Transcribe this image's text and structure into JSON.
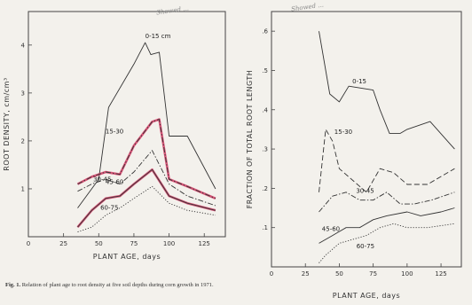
{
  "caption": {
    "figure": "Fig. 1.",
    "text": "Relation of plant age to root density at five soil depths during corn growth in 1971."
  },
  "stamps": {
    "left": "Showed ...",
    "right": "Showed ..."
  },
  "colors": {
    "frame": "#444444",
    "ink": "#333333",
    "highlight": "#d23a64"
  },
  "chart_data": [
    {
      "type": "line",
      "title": "",
      "xlabel": "PLANT AGE, days",
      "ylabel": "ROOT DENSITY, cm/cm³",
      "xlim": [
        0,
        140
      ],
      "ylim": [
        0,
        4.7
      ],
      "xticks": [
        0,
        25,
        50,
        75,
        100,
        125
      ],
      "yticks": [
        1,
        2,
        3,
        4
      ],
      "series": [
        {
          "name": "0-15 cm",
          "style": "solid",
          "points": [
            [
              35,
              0.6
            ],
            [
              50,
              1.2
            ],
            [
              57,
              2.7
            ],
            [
              75,
              3.6
            ],
            [
              83,
              4.05
            ],
            [
              87,
              3.8
            ],
            [
              93,
              3.85
            ],
            [
              100,
              2.1
            ],
            [
              113,
              2.1
            ],
            [
              133,
              1.0
            ]
          ]
        },
        {
          "name": "15-30",
          "style": "dashdot",
          "highlight": true,
          "points": [
            [
              35,
              1.1
            ],
            [
              45,
              1.25
            ],
            [
              55,
              1.35
            ],
            [
              65,
              1.3
            ],
            [
              75,
              1.9
            ],
            [
              88,
              2.4
            ],
            [
              93,
              2.45
            ],
            [
              100,
              1.2
            ],
            [
              113,
              1.05
            ],
            [
              133,
              0.8
            ]
          ]
        },
        {
          "name": "30-45",
          "style": "dashdot",
          "points": [
            [
              35,
              0.95
            ],
            [
              45,
              1.1
            ],
            [
              55,
              1.2
            ],
            [
              65,
              1.1
            ],
            [
              75,
              1.35
            ],
            [
              88,
              1.8
            ],
            [
              100,
              1.1
            ],
            [
              113,
              0.85
            ],
            [
              133,
              0.65
            ]
          ]
        },
        {
          "name": "45-60",
          "style": "solid",
          "highlight": true,
          "points": [
            [
              35,
              0.2
            ],
            [
              45,
              0.55
            ],
            [
              55,
              0.8
            ],
            [
              65,
              0.85
            ],
            [
              75,
              1.1
            ],
            [
              88,
              1.4
            ],
            [
              100,
              0.85
            ],
            [
              113,
              0.7
            ],
            [
              133,
              0.55
            ]
          ]
        },
        {
          "name": "60-75",
          "style": "dotted",
          "points": [
            [
              35,
              0.1
            ],
            [
              45,
              0.2
            ],
            [
              55,
              0.45
            ],
            [
              65,
              0.6
            ],
            [
              75,
              0.8
            ],
            [
              88,
              1.05
            ],
            [
              100,
              0.7
            ],
            [
              113,
              0.55
            ],
            [
              133,
              0.45
            ]
          ]
        }
      ]
    },
    {
      "type": "line",
      "title": "",
      "xlabel": "PLANT AGE, days",
      "ylabel": "FRACTION OF TOTAL ROOT LENGTH",
      "xlim": [
        0,
        140
      ],
      "ylim": [
        0,
        0.65
      ],
      "xticks": [
        0,
        25,
        50,
        75,
        100,
        125
      ],
      "yticks": [
        0.1,
        0.2,
        0.3,
        0.4,
        0.5,
        0.6
      ],
      "ytick_labels": [
        ".1",
        ".2",
        ".3",
        ".4",
        ".5",
        ".6"
      ],
      "series": [
        {
          "name": "0-15",
          "style": "solid",
          "points": [
            [
              35,
              0.6
            ],
            [
              43,
              0.44
            ],
            [
              50,
              0.42
            ],
            [
              57,
              0.46
            ],
            [
              75,
              0.45
            ],
            [
              80,
              0.4
            ],
            [
              87,
              0.34
            ],
            [
              95,
              0.34
            ],
            [
              100,
              0.35
            ],
            [
              117,
              0.37
            ],
            [
              135,
              0.3
            ]
          ]
        },
        {
          "name": "15-30",
          "style": "dashed",
          "points": [
            [
              35,
              0.19
            ],
            [
              40,
              0.35
            ],
            [
              45,
              0.32
            ],
            [
              50,
              0.25
            ],
            [
              60,
              0.22
            ],
            [
              70,
              0.19
            ],
            [
              80,
              0.25
            ],
            [
              90,
              0.24
            ],
            [
              100,
              0.21
            ],
            [
              115,
              0.21
            ],
            [
              135,
              0.25
            ]
          ]
        },
        {
          "name": "30-45",
          "style": "dashdot",
          "points": [
            [
              35,
              0.14
            ],
            [
              45,
              0.18
            ],
            [
              55,
              0.19
            ],
            [
              65,
              0.17
            ],
            [
              75,
              0.17
            ],
            [
              85,
              0.19
            ],
            [
              95,
              0.16
            ],
            [
              105,
              0.16
            ],
            [
              118,
              0.17
            ],
            [
              135,
              0.19
            ]
          ]
        },
        {
          "name": "45-60",
          "style": "solid",
          "points": [
            [
              35,
              0.06
            ],
            [
              45,
              0.08
            ],
            [
              55,
              0.1
            ],
            [
              65,
              0.1
            ],
            [
              75,
              0.12
            ],
            [
              85,
              0.13
            ],
            [
              100,
              0.14
            ],
            [
              110,
              0.13
            ],
            [
              125,
              0.14
            ],
            [
              135,
              0.15
            ]
          ]
        },
        {
          "name": "60-75",
          "style": "dotted",
          "points": [
            [
              35,
              0.01
            ],
            [
              40,
              0.03
            ],
            [
              50,
              0.06
            ],
            [
              60,
              0.07
            ],
            [
              70,
              0.08
            ],
            [
              80,
              0.1
            ],
            [
              90,
              0.11
            ],
            [
              100,
              0.1
            ],
            [
              115,
              0.1
            ],
            [
              135,
              0.11
            ]
          ]
        }
      ]
    }
  ]
}
